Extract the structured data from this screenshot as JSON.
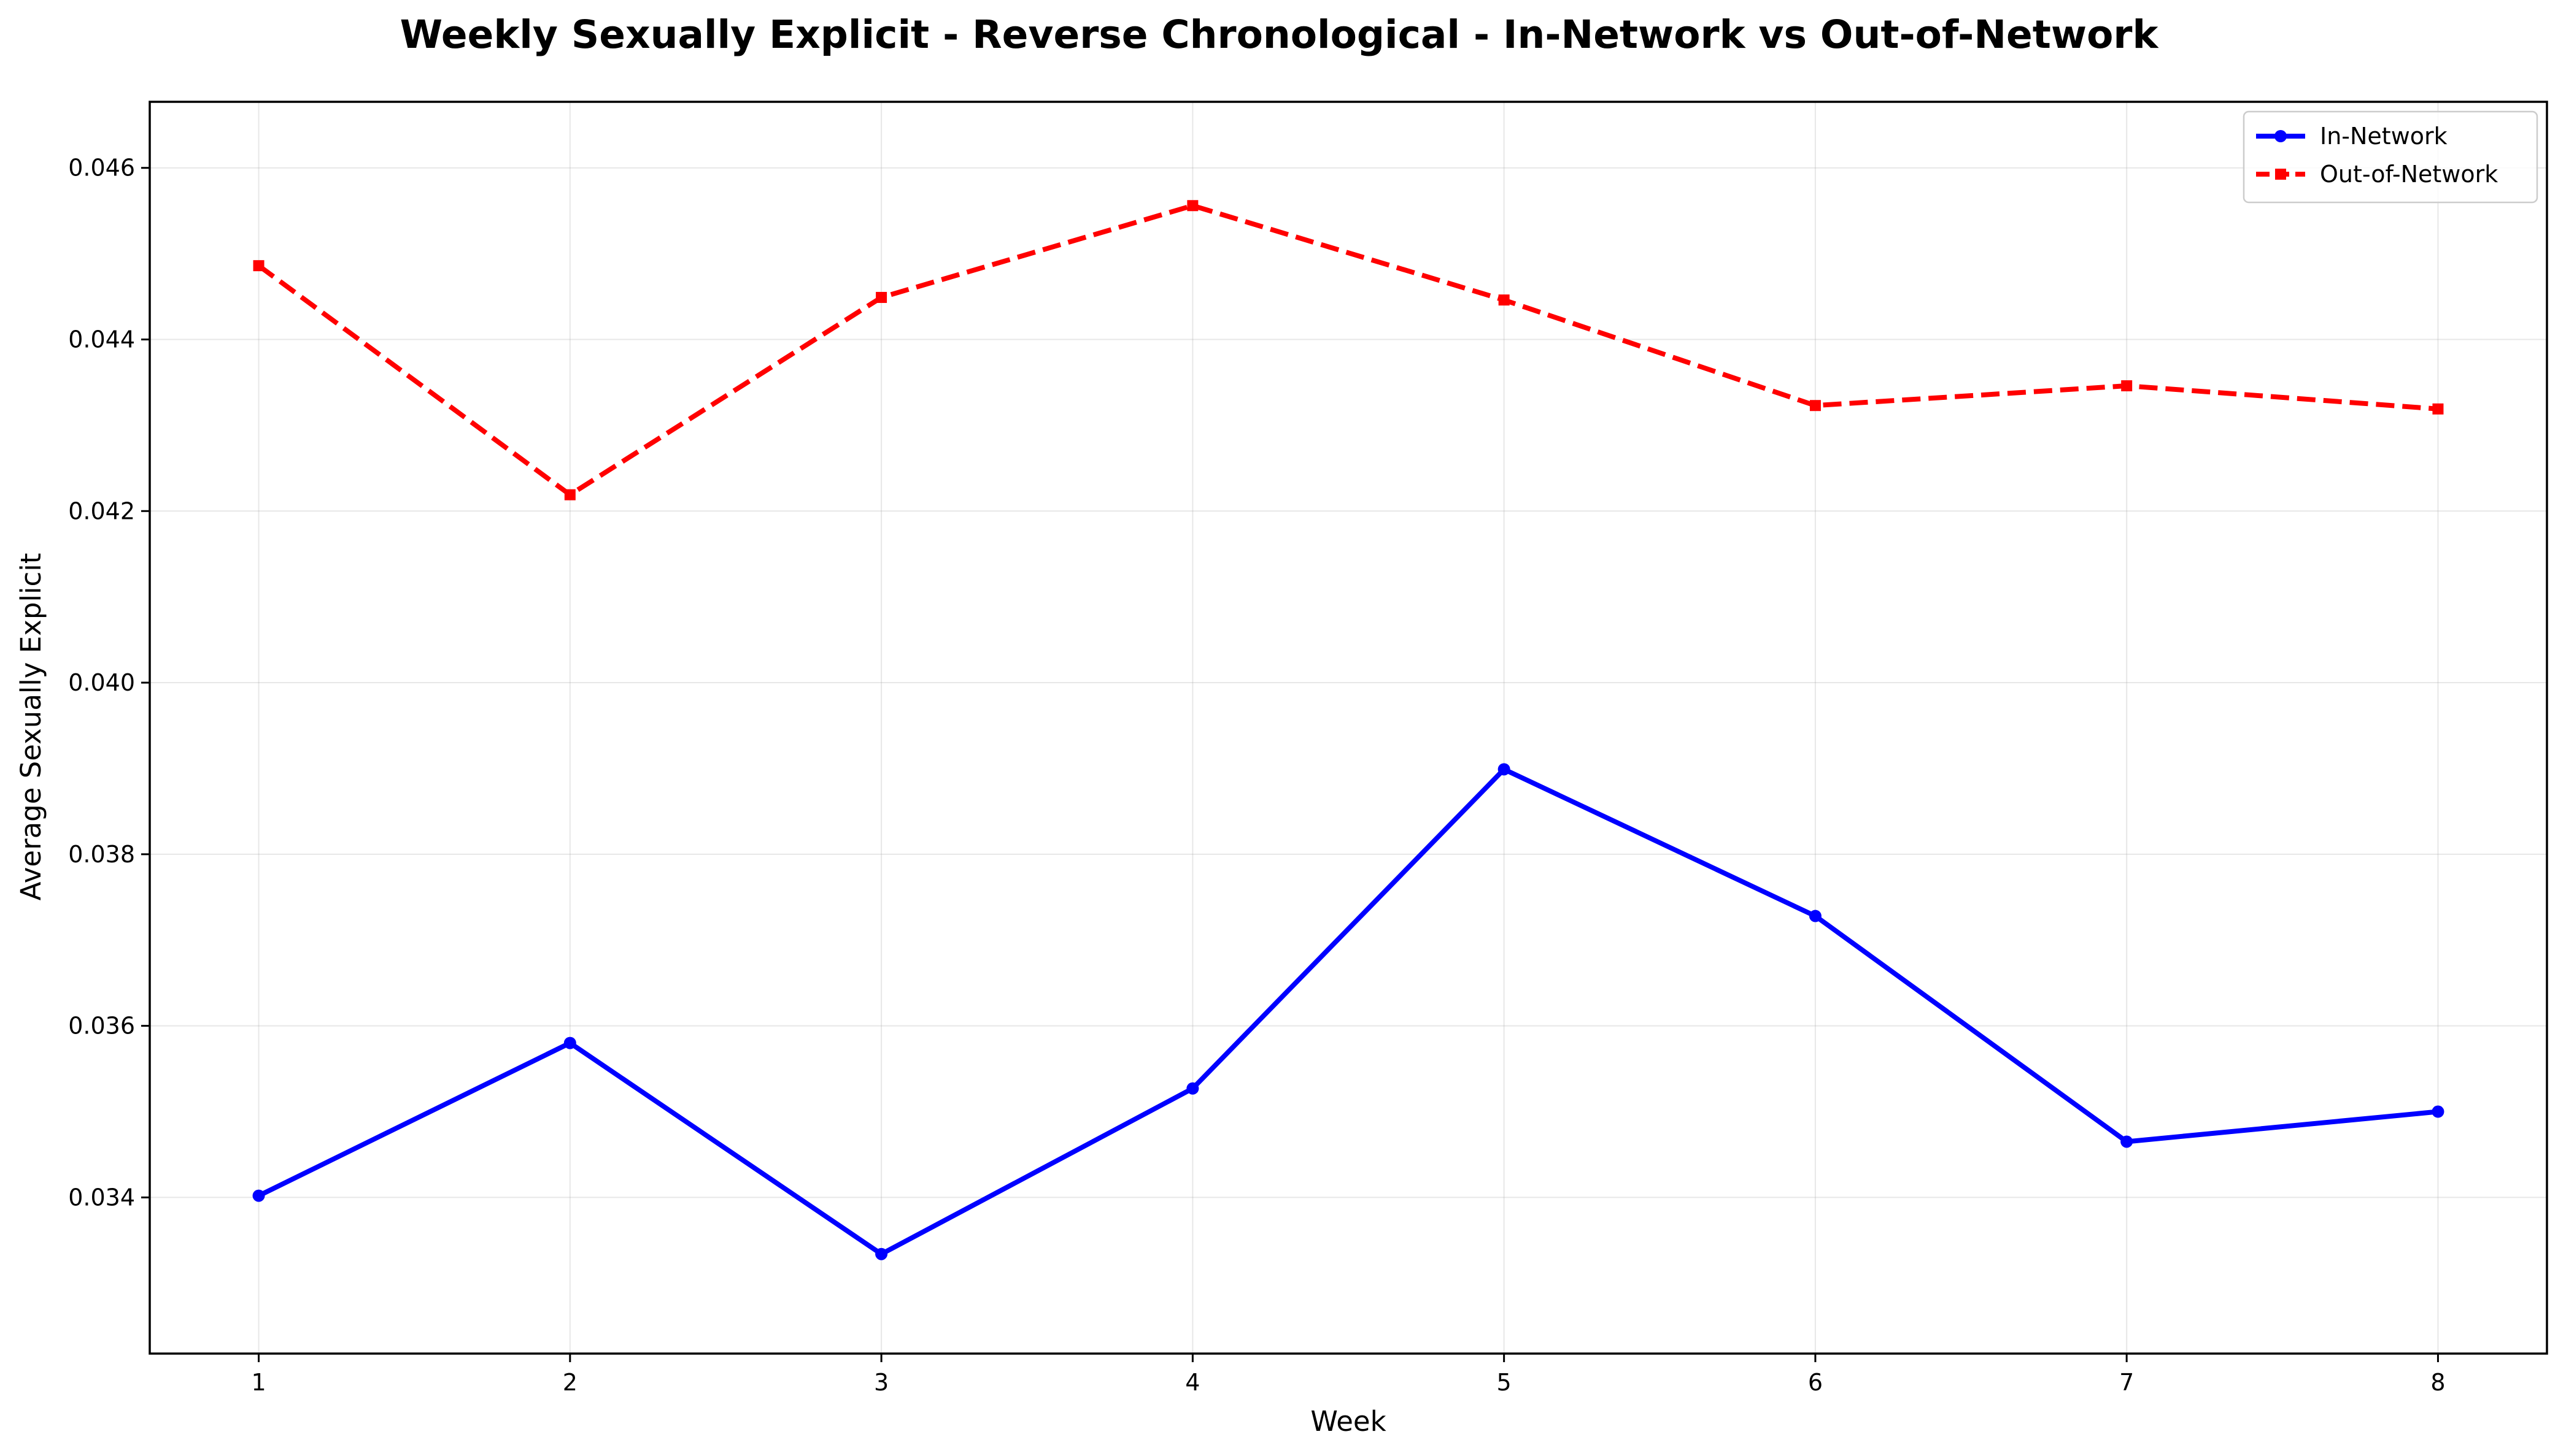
{
  "chart_data": {
    "type": "line",
    "title": "Weekly Sexually Explicit - Reverse Chronological - In-Network vs Out-of-Network",
    "xlabel": "Week",
    "ylabel": "Average Sexually Explicit",
    "x": [
      1,
      2,
      3,
      4,
      5,
      6,
      7,
      8
    ],
    "x_tick_labels": [
      "1",
      "2",
      "3",
      "4",
      "5",
      "6",
      "7",
      "8"
    ],
    "xlim": [
      0.65,
      8.35
    ],
    "ylim": [
      0.03218,
      0.04677
    ],
    "y_ticks": [
      0.034,
      0.036,
      0.038,
      0.04,
      0.042,
      0.044,
      0.046
    ],
    "y_tick_labels": [
      "0.034",
      "0.036",
      "0.038",
      "0.040",
      "0.042",
      "0.044",
      "0.046"
    ],
    "grid": true,
    "legend_position": "top-right",
    "series": [
      {
        "name": "In-Network",
        "color": "#0000ff",
        "line_style": "solid",
        "marker": "circle",
        "values": [
          0.03402,
          0.0358,
          0.03334,
          0.03527,
          0.03899,
          0.03728,
          0.03465,
          0.035
        ]
      },
      {
        "name": "Out-of-Network",
        "color": "#ff0000",
        "line_style": "dashed",
        "marker": "square",
        "values": [
          0.04486,
          0.04219,
          0.04449,
          0.04556,
          0.04446,
          0.04323,
          0.04346,
          0.04319
        ]
      }
    ]
  }
}
